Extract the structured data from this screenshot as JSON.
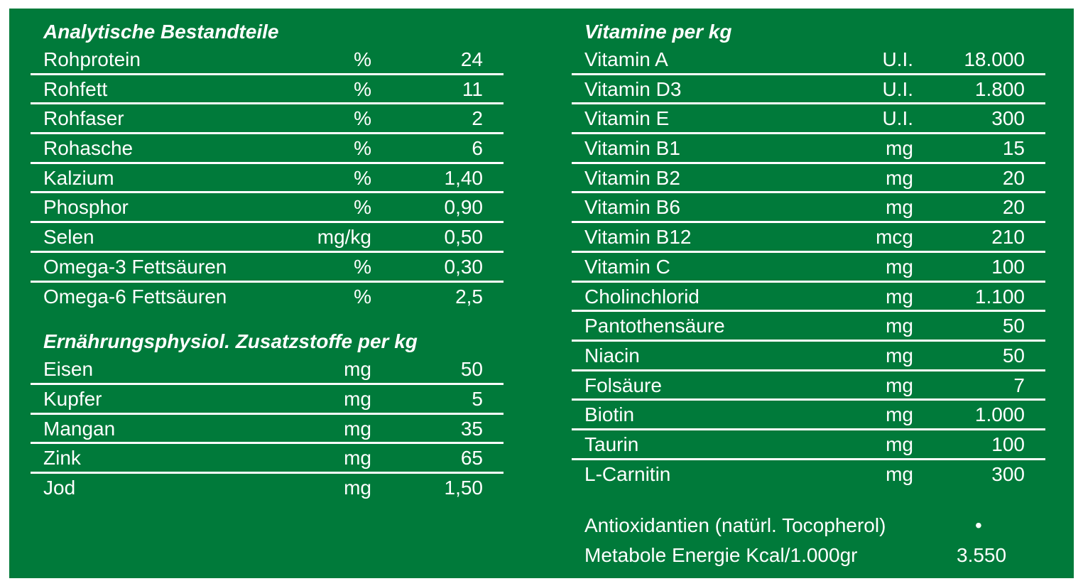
{
  "analytische": {
    "title": "Analytische Bestandteile",
    "rows": [
      {
        "name": "Rohprotein",
        "unit": "%",
        "value": "24"
      },
      {
        "name": "Rohfett",
        "unit": "%",
        "value": "11"
      },
      {
        "name": "Rohfaser",
        "unit": "%",
        "value": "2"
      },
      {
        "name": "Rohasche",
        "unit": "%",
        "value": "6"
      },
      {
        "name": "Kalzium",
        "unit": "%",
        "value": "1,40"
      },
      {
        "name": "Phosphor",
        "unit": "%",
        "value": "0,90"
      },
      {
        "name": "Selen",
        "unit": "mg/kg",
        "value": "0,50"
      },
      {
        "name": "Omega-3 Fettsäuren",
        "unit": "%",
        "value": "0,30"
      },
      {
        "name": "Omega-6 Fettsäuren",
        "unit": "%",
        "value": "2,5"
      }
    ]
  },
  "zusatzstoffe": {
    "title": "Ernährungsphysiol. Zusatzstoffe per kg",
    "rows": [
      {
        "name": "Eisen",
        "unit": "mg",
        "value": "50"
      },
      {
        "name": "Kupfer",
        "unit": "mg",
        "value": "5"
      },
      {
        "name": "Mangan",
        "unit": "mg",
        "value": "35"
      },
      {
        "name": "Zink",
        "unit": "mg",
        "value": "65"
      },
      {
        "name": "Jod",
        "unit": "mg",
        "value": "1,50"
      }
    ]
  },
  "vitamine": {
    "title": "Vitamine per kg",
    "rows": [
      {
        "name": "Vitamin A",
        "unit": "U.I.",
        "value": "18.000"
      },
      {
        "name": "Vitamin D3",
        "unit": "U.I.",
        "value": "1.800"
      },
      {
        "name": "Vitamin E",
        "unit": "U.I.",
        "value": "300"
      },
      {
        "name": "Vitamin B1",
        "unit": "mg",
        "value": "15"
      },
      {
        "name": "Vitamin B2",
        "unit": "mg",
        "value": "20"
      },
      {
        "name": "Vitamin B6",
        "unit": "mg",
        "value": "20"
      },
      {
        "name": "Vitamin B12",
        "unit": "mcg",
        "value": "210"
      },
      {
        "name": "Vitamin C",
        "unit": "mg",
        "value": "100"
      },
      {
        "name": "Cholinchlorid",
        "unit": "mg",
        "value": "1.100"
      },
      {
        "name": "Pantothensäure",
        "unit": "mg",
        "value": "50"
      },
      {
        "name": "Niacin",
        "unit": "mg",
        "value": "50"
      },
      {
        "name": "Folsäure",
        "unit": "mg",
        "value": "7"
      },
      {
        "name": "Biotin",
        "unit": "mg",
        "value": "1.000"
      },
      {
        "name": "Taurin",
        "unit": "mg",
        "value": "100"
      },
      {
        "name": "L-Carnitin",
        "unit": "mg",
        "value": "300"
      }
    ]
  },
  "footer": {
    "antioxidantien_label": "Antioxidantien (natürl. Tocopherol)",
    "antioxidantien_value": "•",
    "energie_label": "Metabole Energie Kcal/1.000gr",
    "energie_value": "3.550"
  },
  "colors": {
    "background": "#007a3a",
    "text": "#ffffff"
  }
}
